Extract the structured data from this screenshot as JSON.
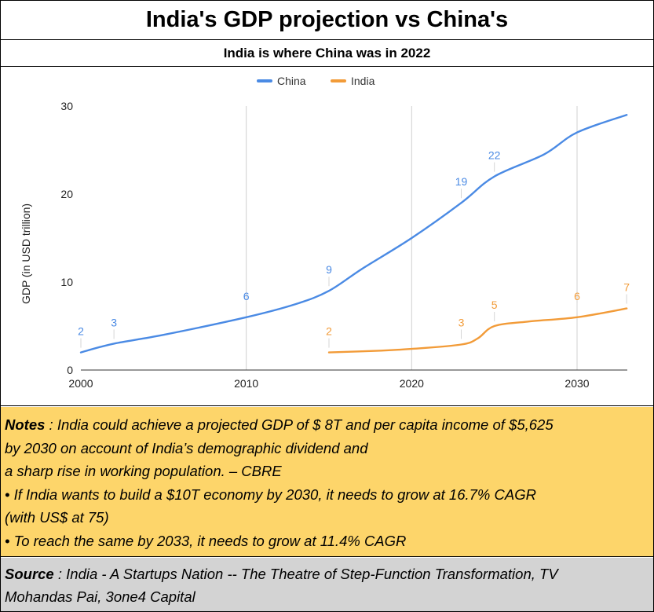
{
  "header": {
    "title": "India's GDP projection vs China's",
    "subtitle": "India is where China was in 2022"
  },
  "colors": {
    "china": "#4a8ae4",
    "india": "#f29b38",
    "notes_bg": "#fdd56a",
    "source_bg": "#d3d3d3"
  },
  "chart_data": {
    "type": "line",
    "title": "",
    "xlabel": "",
    "ylabel": "GDP (in USD trillion)",
    "xlim": [
      2000,
      2033
    ],
    "ylim": [
      0,
      30
    ],
    "xticks": [
      2000,
      2010,
      2020,
      2030
    ],
    "yticks": [
      0,
      10,
      20,
      30
    ],
    "grid": "vertical",
    "legend": {
      "position": "top-center",
      "entries": [
        "China",
        "India"
      ]
    },
    "series": [
      {
        "name": "China",
        "color": "#4a8ae4",
        "points": [
          [
            2000,
            2
          ],
          [
            2002,
            3
          ],
          [
            2005,
            4
          ],
          [
            2010,
            6
          ],
          [
            2013,
            7.5
          ],
          [
            2015,
            9
          ],
          [
            2017,
            11.5
          ],
          [
            2020,
            15
          ],
          [
            2023,
            19
          ],
          [
            2025,
            22
          ],
          [
            2028,
            24.5
          ],
          [
            2030,
            27
          ],
          [
            2033,
            29
          ]
        ],
        "data_labels": [
          {
            "x": 2000,
            "y": 2,
            "label": "2"
          },
          {
            "x": 2002,
            "y": 3,
            "label": "3"
          },
          {
            "x": 2010,
            "y": 6,
            "label": "6"
          },
          {
            "x": 2015,
            "y": 9,
            "label": "9"
          },
          {
            "x": 2023,
            "y": 19,
            "label": "19"
          },
          {
            "x": 2025,
            "y": 22,
            "label": "22"
          }
        ]
      },
      {
        "name": "India",
        "color": "#f29b38",
        "points": [
          [
            2015,
            2
          ],
          [
            2018,
            2.2
          ],
          [
            2020,
            2.4
          ],
          [
            2023,
            2.9
          ],
          [
            2024,
            3.6
          ],
          [
            2025,
            5
          ],
          [
            2027,
            5.5
          ],
          [
            2030,
            6
          ],
          [
            2033,
            7
          ]
        ],
        "data_labels": [
          {
            "x": 2015,
            "y": 2,
            "label": "2"
          },
          {
            "x": 2023,
            "y": 3,
            "label": "3"
          },
          {
            "x": 2025,
            "y": 5,
            "label": "5"
          },
          {
            "x": 2030,
            "y": 6,
            "label": "6"
          },
          {
            "x": 2033,
            "y": 7,
            "label": "7"
          }
        ]
      }
    ]
  },
  "notes": {
    "label": "Notes",
    "line1": " : India could achieve a projected GDP of $ 8T and per capita income of $5,625",
    "line2": "by 2030 on account of India’s demographic dividend and",
    "line3": "a sharp rise in working population. – CBRE",
    "line4": "• If India wants to build a $10T economy by 2030, it needs to grow at 16.7% CAGR",
    "line5": "(with US$ at 75)",
    "line6": "• To reach the same by 2033, it needs to grow at 11.4% CAGR"
  },
  "source": {
    "label": "Source",
    "line1": " : India - A Startups Nation -- The Theatre of Step-Function Transformation, TV",
    "line2": "Mohandas Pai, 3one4 Capital"
  }
}
